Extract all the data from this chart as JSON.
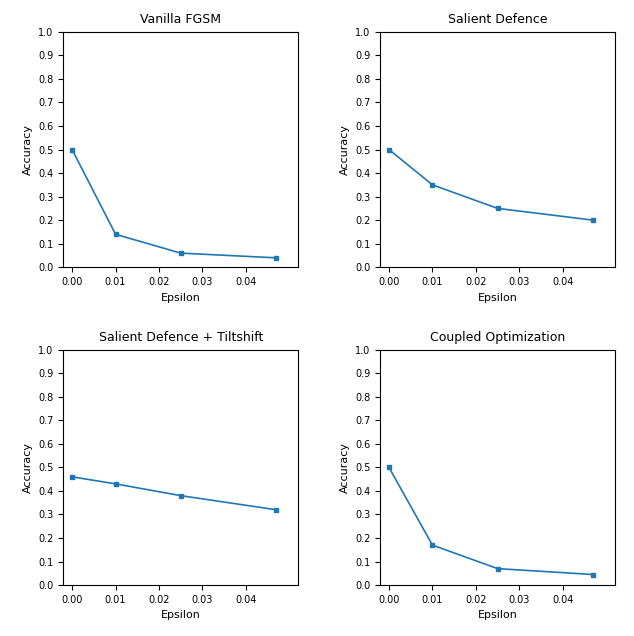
{
  "subplots": [
    {
      "title": "Vanilla FGSM",
      "x": [
        0.0,
        0.01,
        0.025,
        0.047
      ],
      "y": [
        0.5,
        0.14,
        0.06,
        0.04
      ],
      "xlabel": "Epsilon",
      "ylabel": "Accuracy"
    },
    {
      "title": "Salient Defence",
      "x": [
        0.0,
        0.01,
        0.025,
        0.047
      ],
      "y": [
        0.5,
        0.35,
        0.25,
        0.2
      ],
      "xlabel": "Epsilon",
      "ylabel": "Accuracy"
    },
    {
      "title": "Salient Defence + Tiltshift",
      "x": [
        0.0,
        0.01,
        0.025,
        0.047
      ],
      "y": [
        0.46,
        0.43,
        0.38,
        0.32
      ],
      "xlabel": "Epsilon",
      "ylabel": "Accuracy"
    },
    {
      "title": "Coupled Optimization",
      "x": [
        0.0,
        0.01,
        0.025,
        0.047
      ],
      "y": [
        0.5,
        0.17,
        0.07,
        0.045
      ],
      "xlabel": "Epsilon",
      "ylabel": "Accuracy"
    }
  ],
  "line_color": "#1f77b4",
  "marker": "s",
  "markersize": 3,
  "linewidth": 1.2,
  "ylim": [
    0.0,
    1.0
  ],
  "yticks": [
    0.0,
    0.1,
    0.2,
    0.3,
    0.4,
    0.5,
    0.6,
    0.7,
    0.8,
    0.9,
    1.0
  ],
  "xticks": [
    0.0,
    0.01,
    0.02,
    0.03,
    0.04
  ],
  "fig_width": 6.34,
  "fig_height": 6.36,
  "dpi": 100,
  "title_fontsize": 9,
  "label_fontsize": 8,
  "tick_fontsize": 7
}
